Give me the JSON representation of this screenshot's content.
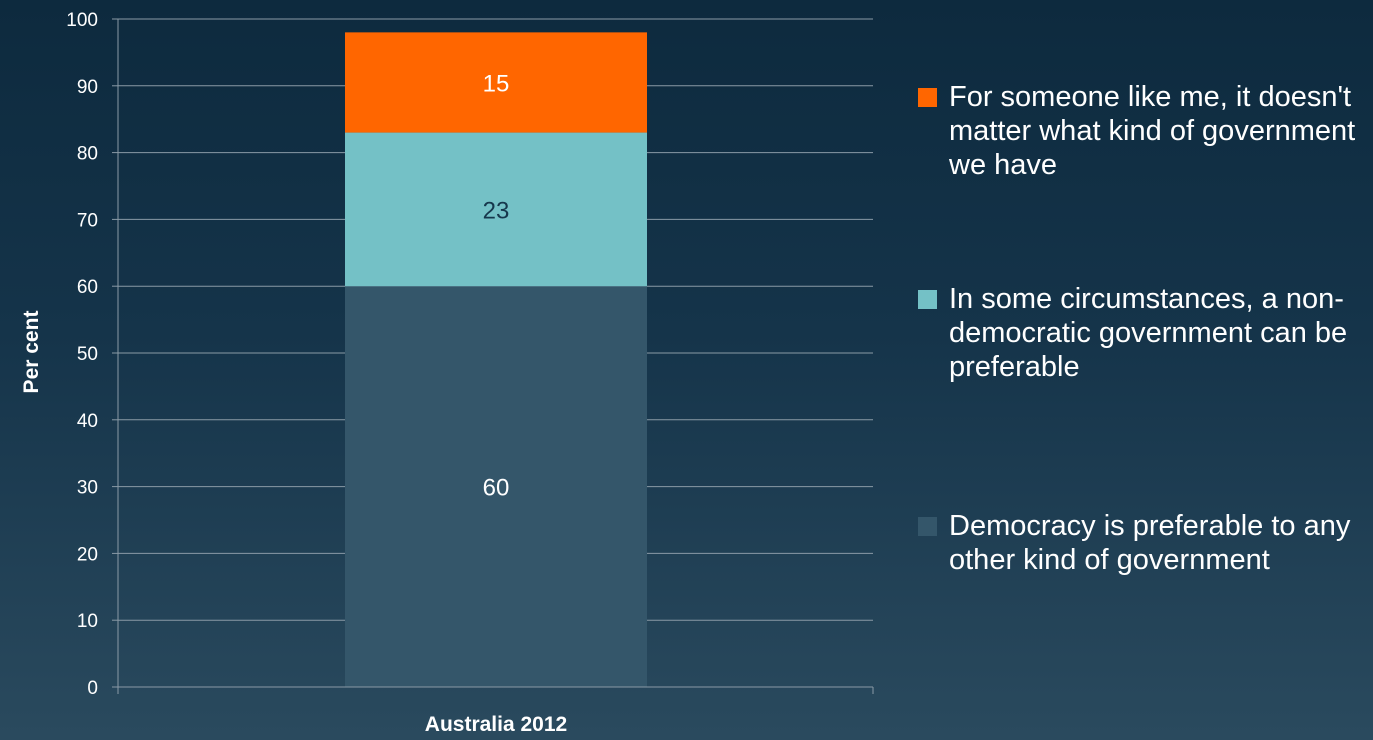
{
  "chart_data": {
    "type": "bar",
    "stacked": true,
    "categories": [
      "Australia 2012"
    ],
    "series": [
      {
        "name": "Democracy is preferable to any other kind of government",
        "values": [
          60
        ],
        "color": "#34566a"
      },
      {
        "name": "In some circumstances, a non-democratic government can be preferable",
        "values": [
          23
        ],
        "color": "#74c1c6"
      },
      {
        "name": "For someone like me, it doesn't matter what kind of government we have",
        "values": [
          15
        ],
        "color": "#ff6600"
      }
    ],
    "ylabel": "Per cent",
    "xlabel": "",
    "ylim": [
      0,
      100
    ],
    "yticks": [
      "0",
      "10",
      "20",
      "30",
      "40",
      "50",
      "60",
      "70",
      "80",
      "90",
      "100"
    ],
    "grid": true,
    "legend_position": "right",
    "data_label_colors": [
      "#ffffff",
      "#16374c",
      "#ffffff"
    ]
  },
  "legend": [
    {
      "label": "For someone like me, it doesn't matter what kind of government we have",
      "color": "#ff6600"
    },
    {
      "label": "In some circumstances, a non-democratic government can be preferable",
      "color": "#74c1c6"
    },
    {
      "label": "Democracy is preferable to any other kind of government",
      "color": "#34566a"
    }
  ]
}
